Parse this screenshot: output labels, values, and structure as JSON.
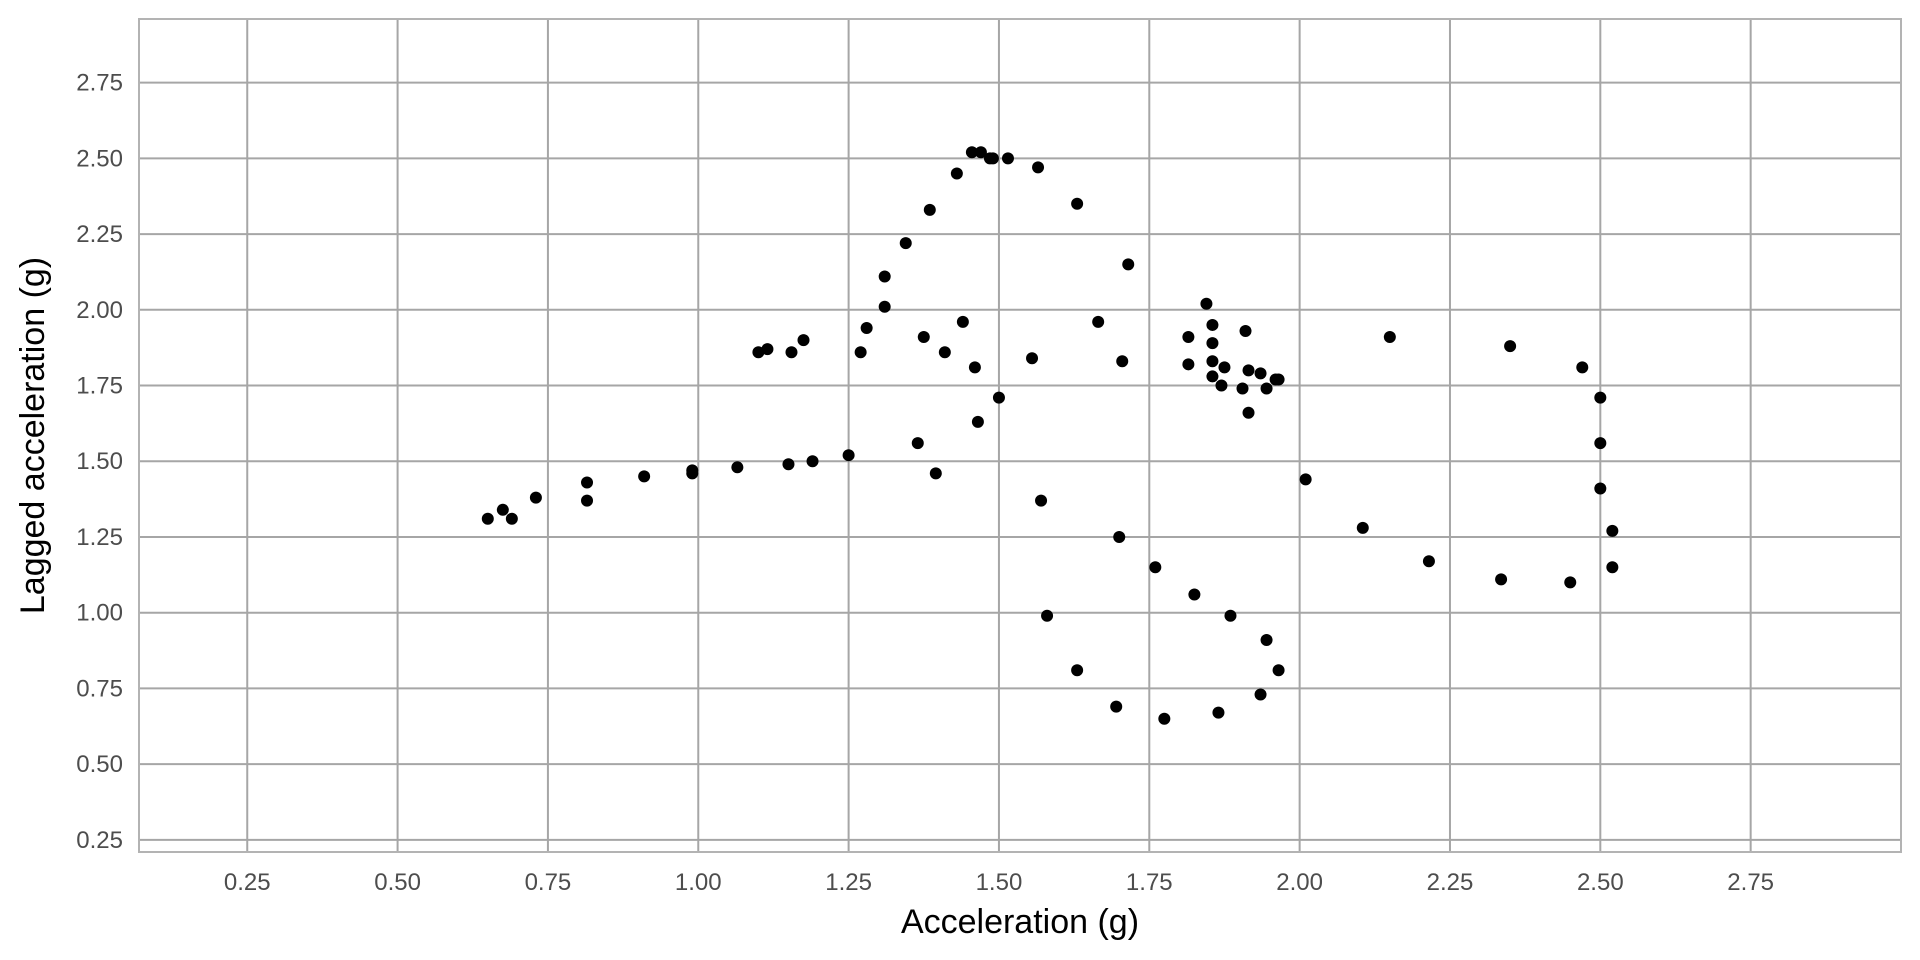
{
  "chart_data": {
    "type": "scatter",
    "title": "",
    "xlabel": "Acceleration (g)",
    "ylabel": "Lagged acceleration (g)",
    "xlim": [
      0.07,
      3.0
    ],
    "ylim": [
      0.21,
      2.96
    ],
    "x_ticks": [
      0.25,
      0.5,
      0.75,
      1.0,
      1.25,
      1.5,
      1.75,
      2.0,
      2.25,
      2.5,
      2.75
    ],
    "y_ticks": [
      0.25,
      0.5,
      0.75,
      1.0,
      1.25,
      1.5,
      1.75,
      2.0,
      2.25,
      2.5,
      2.75
    ],
    "x_tick_labels": [
      "0.25",
      "0.50",
      "0.75",
      "1.00",
      "1.25",
      "1.50",
      "1.75",
      "2.00",
      "2.25",
      "2.50",
      "2.75"
    ],
    "y_tick_labels": [
      "0.25",
      "0.50",
      "0.75",
      "1.00",
      "1.25",
      "1.50",
      "1.75",
      "2.00",
      "2.25",
      "2.50",
      "2.75"
    ],
    "grid": true,
    "legend": "none",
    "colors": {
      "point": "#000000",
      "grid": "#a6a6a6",
      "panel_border": "#b3b3b3",
      "tick_label": "#4d4d4d",
      "axis_title": "#000000"
    },
    "series": [
      {
        "points": [
          [
            0.65,
            1.31
          ],
          [
            0.675,
            1.34
          ],
          [
            0.69,
            1.31
          ],
          [
            0.73,
            1.38
          ],
          [
            0.815,
            1.43
          ],
          [
            0.815,
            1.37
          ],
          [
            0.91,
            1.45
          ],
          [
            0.99,
            1.46
          ],
          [
            0.99,
            1.47
          ],
          [
            1.065,
            1.48
          ],
          [
            1.15,
            1.49
          ],
          [
            1.19,
            1.5
          ],
          [
            1.25,
            1.52
          ],
          [
            1.1,
            1.86
          ],
          [
            1.115,
            1.87
          ],
          [
            1.155,
            1.86
          ],
          [
            1.175,
            1.9
          ],
          [
            1.27,
            1.86
          ],
          [
            1.28,
            1.94
          ],
          [
            1.31,
            2.01
          ],
          [
            1.31,
            2.11
          ],
          [
            1.345,
            2.22
          ],
          [
            1.365,
            1.56
          ],
          [
            1.375,
            1.91
          ],
          [
            1.385,
            2.33
          ],
          [
            1.395,
            1.46
          ],
          [
            1.41,
            1.86
          ],
          [
            1.43,
            2.45
          ],
          [
            1.44,
            1.96
          ],
          [
            1.455,
            2.52
          ],
          [
            1.46,
            1.81
          ],
          [
            1.465,
            1.63
          ],
          [
            1.47,
            2.52
          ],
          [
            1.485,
            2.5
          ],
          [
            1.49,
            2.5
          ],
          [
            1.5,
            1.71
          ],
          [
            1.515,
            2.5
          ],
          [
            1.555,
            1.84
          ],
          [
            1.565,
            2.47
          ],
          [
            1.57,
            1.37
          ],
          [
            1.58,
            0.99
          ],
          [
            1.63,
            2.35
          ],
          [
            1.63,
            0.81
          ],
          [
            1.665,
            1.96
          ],
          [
            1.695,
            0.69
          ],
          [
            1.7,
            1.25
          ],
          [
            1.705,
            1.83
          ],
          [
            1.715,
            2.15
          ],
          [
            1.76,
            1.15
          ],
          [
            1.775,
            0.65
          ],
          [
            1.815,
            1.91
          ],
          [
            1.815,
            1.82
          ],
          [
            1.825,
            1.06
          ],
          [
            1.845,
            2.02
          ],
          [
            1.855,
            1.95
          ],
          [
            1.855,
            1.89
          ],
          [
            1.855,
            1.83
          ],
          [
            1.855,
            1.78
          ],
          [
            1.865,
            0.67
          ],
          [
            1.87,
            1.75
          ],
          [
            1.875,
            1.81
          ],
          [
            1.885,
            0.99
          ],
          [
            1.905,
            1.74
          ],
          [
            1.91,
            1.93
          ],
          [
            1.915,
            1.8
          ],
          [
            1.915,
            1.66
          ],
          [
            1.935,
            0.73
          ],
          [
            1.935,
            1.79
          ],
          [
            1.945,
            1.74
          ],
          [
            1.945,
            0.91
          ],
          [
            1.96,
            1.77
          ],
          [
            1.965,
            1.77
          ],
          [
            1.965,
            0.81
          ],
          [
            2.01,
            1.44
          ],
          [
            2.105,
            1.28
          ],
          [
            2.15,
            1.91
          ],
          [
            2.215,
            1.17
          ],
          [
            2.335,
            1.11
          ],
          [
            2.35,
            1.88
          ],
          [
            2.45,
            1.1
          ],
          [
            2.47,
            1.81
          ],
          [
            2.5,
            1.71
          ],
          [
            2.5,
            1.56
          ],
          [
            2.5,
            1.41
          ],
          [
            2.52,
            1.27
          ],
          [
            2.52,
            1.15
          ]
        ]
      }
    ]
  }
}
